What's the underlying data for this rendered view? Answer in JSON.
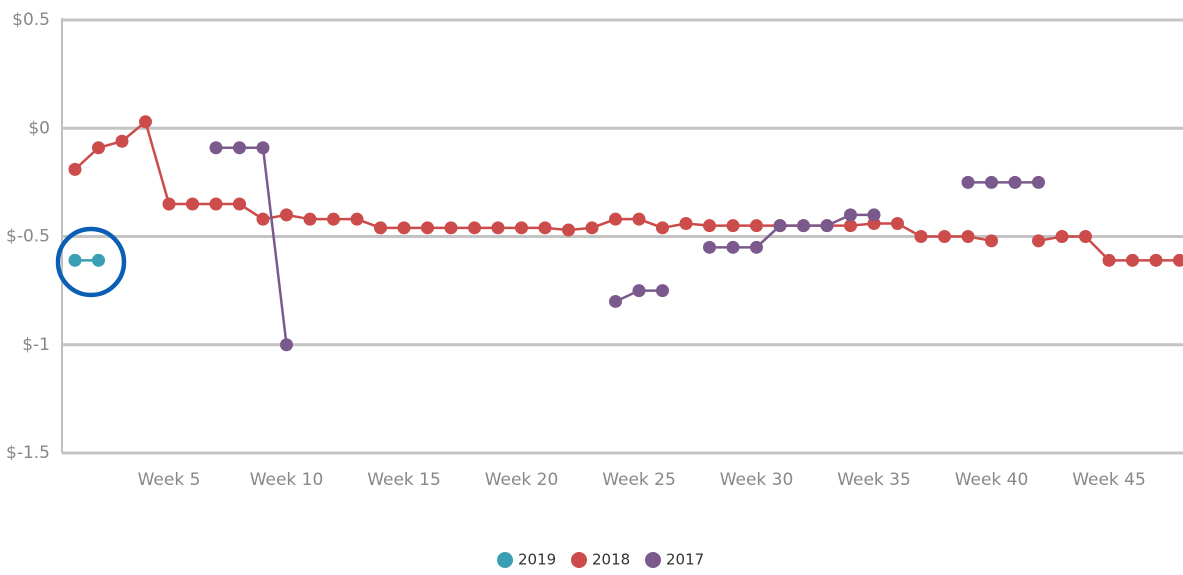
{
  "chart_data": {
    "type": "line",
    "categories": [
      null,
      null,
      null,
      null,
      "Week 5",
      null,
      null,
      null,
      null,
      "Week 10",
      null,
      null,
      null,
      null,
      "Week 15",
      null,
      null,
      null,
      null,
      "Week 20",
      null,
      null,
      null,
      null,
      "Week 25",
      null,
      null,
      null,
      null,
      "Week 30",
      null,
      null,
      null,
      null,
      "Week 35",
      null,
      null,
      null,
      null,
      "Week 40",
      null,
      null,
      null,
      null,
      "Week 45",
      null,
      null,
      null
    ],
    "series": [
      {
        "name": "2019",
        "color": "#3a9fb5",
        "values": [
          -0.61,
          -0.61,
          null,
          null,
          null,
          null,
          null,
          null,
          null,
          null,
          null,
          null,
          null,
          null,
          null,
          null,
          null,
          null,
          null,
          null,
          null,
          null,
          null,
          null,
          null,
          null,
          null,
          null,
          null,
          null,
          null,
          null,
          null,
          null,
          null,
          null,
          null,
          null,
          null,
          null,
          null,
          null,
          null,
          null,
          null,
          null,
          null,
          null
        ]
      },
      {
        "name": "2018",
        "color": "#cc4b4b",
        "values": [
          -0.19,
          -0.09,
          -0.06,
          0.03,
          -0.35,
          -0.35,
          -0.35,
          -0.35,
          -0.42,
          -0.4,
          -0.42,
          -0.42,
          -0.42,
          -0.46,
          -0.46,
          -0.46,
          -0.46,
          -0.46,
          -0.46,
          -0.46,
          -0.46,
          -0.47,
          -0.46,
          -0.42,
          -0.42,
          -0.46,
          -0.44,
          -0.45,
          -0.45,
          -0.45,
          -0.45,
          -0.45,
          -0.45,
          -0.45,
          -0.44,
          -0.44,
          -0.5,
          -0.5,
          -0.5,
          -0.52,
          null,
          -0.52,
          -0.5,
          -0.5,
          -0.61,
          -0.61,
          -0.61,
          -0.61
        ]
      },
      {
        "name": "2017",
        "color": "#7a5a8c",
        "values": [
          null,
          null,
          null,
          null,
          null,
          null,
          -0.09,
          -0.09,
          -0.09,
          -1.0,
          null,
          null,
          null,
          null,
          null,
          null,
          null,
          null,
          null,
          null,
          null,
          null,
          null,
          -0.8,
          -0.75,
          -0.75,
          null,
          -0.55,
          -0.55,
          -0.55,
          -0.45,
          -0.45,
          -0.45,
          -0.4,
          -0.4,
          null,
          null,
          null,
          -0.25,
          -0.25,
          -0.25,
          -0.25,
          null,
          null,
          null,
          null,
          null,
          null
        ]
      }
    ],
    "ylim": [
      -1.5,
      0.5
    ],
    "yticks": [
      {
        "value": -1.5,
        "label": "$-1.5"
      },
      {
        "value": -1,
        "label": "$-1"
      },
      {
        "value": -0.5,
        "label": "$-0.5"
      },
      {
        "value": 0,
        "label": "$0"
      },
      {
        "value": 0.5,
        "label": "$0.5"
      }
    ],
    "grid": true,
    "legend": "bottom"
  }
}
